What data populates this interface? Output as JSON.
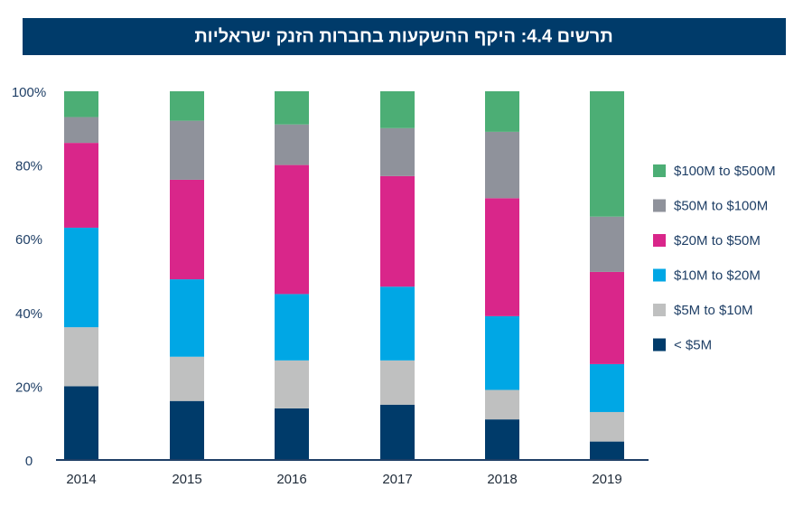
{
  "chart_data": {
    "type": "stacked_bar",
    "title": "תרשים 4.4: היקף ההשקעות בחברות הזנק ישראליות",
    "categories": [
      "2014",
      "2015",
      "2016",
      "2017",
      "2018",
      "2019"
    ],
    "series": [
      {
        "name": "< $5M",
        "color": "#003b6a",
        "values": [
          20,
          16,
          14,
          15,
          11,
          5
        ]
      },
      {
        "name": "$5M to $10M",
        "color": "#bfc0c0",
        "values": [
          16,
          12,
          13,
          12,
          8,
          8
        ]
      },
      {
        "name": "$10M to $20M",
        "color": "#00a7e5",
        "values": [
          27,
          21,
          18,
          20,
          20,
          13
        ]
      },
      {
        "name": "$20M to $50M",
        "color": "#d9268a",
        "values": [
          23,
          27,
          35,
          30,
          32,
          25
        ]
      },
      {
        "name": "$50M to $100M",
        "color": "#8f929b",
        "values": [
          7,
          16,
          11,
          13,
          18,
          15
        ]
      },
      {
        "name": "$100M to $500M",
        "color": "#4cae75",
        "values": [
          7,
          8,
          9,
          10,
          11,
          34
        ]
      }
    ],
    "ylim": [
      0,
      100
    ],
    "yticks": [
      0,
      {
        "value": 20,
        "label": "20%"
      },
      {
        "value": 40,
        "label": "40%"
      },
      {
        "value": 60,
        "label": "60%"
      },
      {
        "value": 80,
        "label": "80%"
      },
      {
        "value": 100,
        "label": "100%"
      }
    ],
    "legend": "right"
  }
}
